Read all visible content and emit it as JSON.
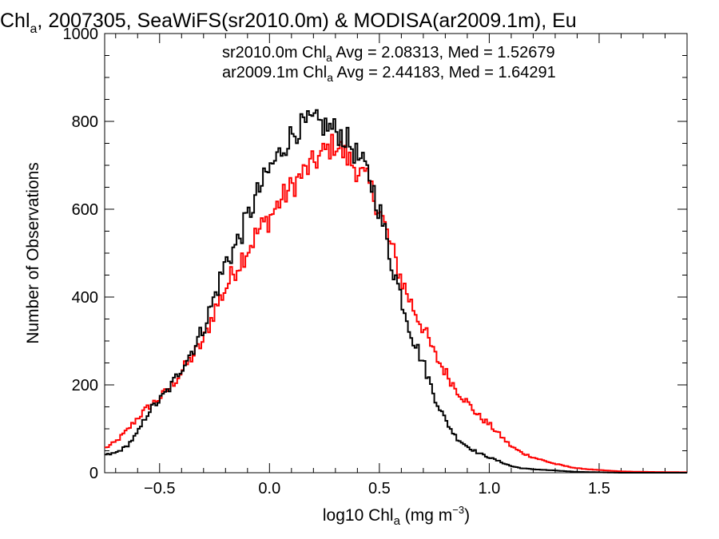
{
  "chart_data": {
    "type": "histogram",
    "title": {
      "pre": "Chl",
      "sub": "a",
      "post": ", 2007305, SeaWiFS(sr2010.0m) & MODISA(ar2009.1m), Eu"
    },
    "xlabel": {
      "pre": "log10 Chl",
      "sub": "a",
      "post": " (mg m",
      "sup": "−3",
      "end": ")"
    },
    "ylabel": "Number of Observations",
    "xlim": [
      -0.75,
      1.9
    ],
    "ylim": [
      0,
      1000
    ],
    "x_ticks": [
      -0.5,
      0.0,
      0.5,
      1.0,
      1.5
    ],
    "x_tick_labels": [
      "−0.5",
      "0.0",
      "0.5",
      "1.0",
      "1.5"
    ],
    "y_ticks": [
      0,
      200,
      400,
      600,
      800,
      1000
    ],
    "y_tick_labels": [
      "0",
      "200",
      "400",
      "600",
      "800",
      "1000"
    ],
    "bin_width": 0.01,
    "grid": false,
    "annotations": [
      {
        "pre": "sr2010.0m Chl",
        "sub": "a",
        "post": " Avg = 2.08313, Med = 1.52679",
        "color": "#000000"
      },
      {
        "pre": "ar2009.1m Chl",
        "sub": "a",
        "post": " Avg = 2.44183, Med = 1.64291",
        "color": "#ff0000"
      }
    ],
    "series": [
      {
        "color": "#000000",
        "x": [
          -0.75,
          -0.7,
          -0.65,
          -0.6,
          -0.55,
          -0.5,
          -0.45,
          -0.4,
          -0.35,
          -0.3,
          -0.25,
          -0.2,
          -0.15,
          -0.1,
          -0.05,
          0.0,
          0.05,
          0.1,
          0.15,
          0.2,
          0.25,
          0.3,
          0.35,
          0.4,
          0.45,
          0.5,
          0.55,
          0.6,
          0.65,
          0.7,
          0.75,
          0.8,
          0.85,
          0.9,
          0.95,
          1.0,
          1.05,
          1.1,
          1.15,
          1.2,
          1.3,
          1.4,
          1.5,
          1.6,
          1.7,
          1.9
        ],
        "y": [
          40,
          45,
          60,
          90,
          140,
          165,
          195,
          240,
          280,
          330,
          400,
          480,
          520,
          580,
          640,
          690,
          730,
          770,
          790,
          800,
          790,
          780,
          760,
          720,
          680,
          600,
          490,
          400,
          310,
          250,
          175,
          120,
          80,
          60,
          45,
          35,
          25,
          15,
          10,
          8,
          5,
          2,
          1,
          0,
          0,
          0
        ]
      },
      {
        "color": "#ff0000",
        "x": [
          -0.75,
          -0.7,
          -0.65,
          -0.6,
          -0.55,
          -0.5,
          -0.45,
          -0.4,
          -0.35,
          -0.3,
          -0.25,
          -0.2,
          -0.15,
          -0.1,
          -0.05,
          0.0,
          0.05,
          0.1,
          0.15,
          0.2,
          0.25,
          0.3,
          0.35,
          0.4,
          0.45,
          0.5,
          0.55,
          0.6,
          0.65,
          0.7,
          0.75,
          0.8,
          0.85,
          0.9,
          0.95,
          1.0,
          1.05,
          1.1,
          1.15,
          1.2,
          1.3,
          1.4,
          1.5,
          1.6,
          1.7,
          1.9
        ],
        "y": [
          55,
          70,
          95,
          125,
          150,
          170,
          195,
          230,
          265,
          300,
          370,
          420,
          470,
          510,
          550,
          580,
          620,
          650,
          680,
          705,
          730,
          750,
          720,
          690,
          660,
          600,
          520,
          440,
          380,
          330,
          270,
          230,
          190,
          160,
          130,
          110,
          85,
          60,
          45,
          35,
          20,
          10,
          6,
          3,
          2,
          1
        ]
      }
    ]
  }
}
